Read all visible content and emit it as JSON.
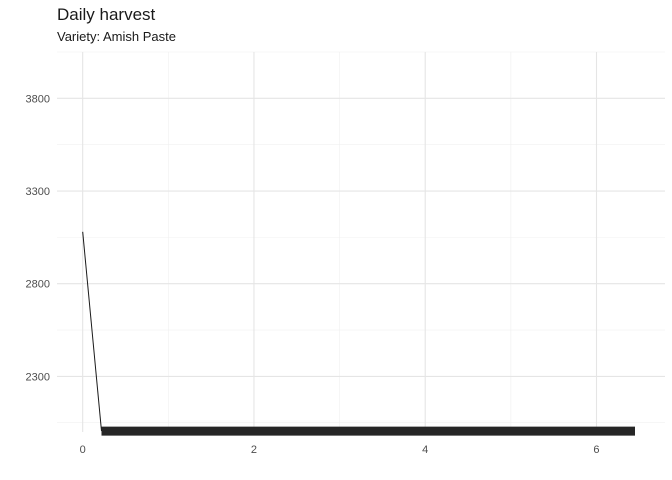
{
  "chart_data": {
    "type": "line",
    "title": "Daily harvest",
    "subtitle": "Variety: Amish Paste",
    "xlabel": "",
    "ylabel": "",
    "xlim": [
      -0.3,
      6.8
    ],
    "ylim": [
      2000,
      4050
    ],
    "x_ticks": [
      0,
      2,
      4,
      6
    ],
    "y_ticks": [
      2300,
      2800,
      3300,
      3800
    ],
    "grid": true,
    "series": [
      {
        "color": "#1a1a1a",
        "points": [
          [
            0.0,
            3080
          ],
          [
            0.22,
            2005
          ]
        ],
        "stroke": "thin"
      },
      {
        "color": "#262626",
        "points": [
          [
            0.22,
            2005
          ],
          [
            6.45,
            2005
          ]
        ],
        "stroke": "thick"
      }
    ]
  }
}
